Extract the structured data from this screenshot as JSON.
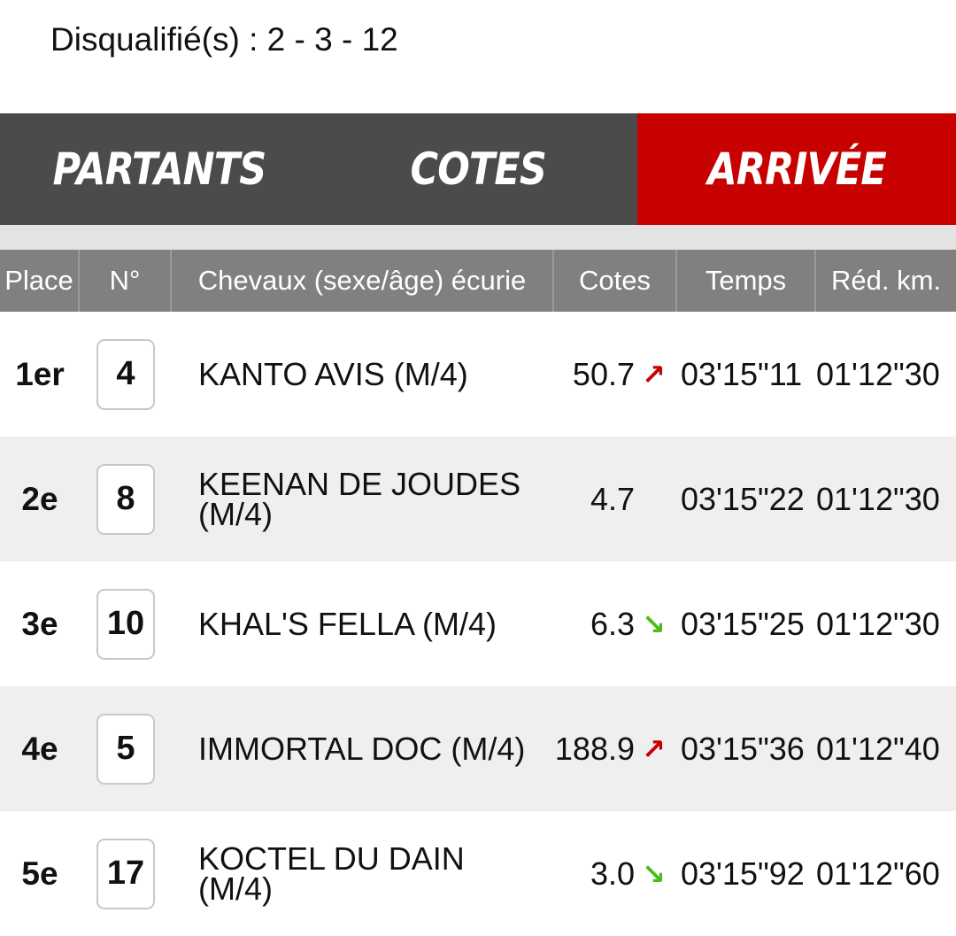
{
  "disqualified": "Disqualifié(s) : 2 - 3 - 12",
  "tabs": [
    {
      "label": "PARTANTS",
      "active": false
    },
    {
      "label": "COTES",
      "active": false
    },
    {
      "label": "ARRIVÉE",
      "active": true
    }
  ],
  "table": {
    "headers": {
      "place": "Place",
      "num": "N°",
      "horse": "Chevaux (sexe/âge) écurie",
      "cotes": "Cotes",
      "temps": "Temps",
      "red_km": "Réd. km."
    },
    "rows": [
      {
        "place": "1er",
        "num": "4",
        "horse": "KANTO AVIS (M/4)",
        "cote": "50.7",
        "trend": "up",
        "trend_icon": "arrow-up-right-icon",
        "temps": "03'15\"11",
        "red_km": "01'12\"30"
      },
      {
        "place": "2e",
        "num": "8",
        "horse": "KEENAN DE JOUDES (M/4)",
        "cote": "4.7",
        "trend": "none",
        "trend_icon": "",
        "temps": "03'15\"22",
        "red_km": "01'12\"30"
      },
      {
        "place": "3e",
        "num": "10",
        "horse": "KHAL'S FELLA (M/4)",
        "cote": "6.3",
        "trend": "down",
        "trend_icon": "arrow-down-right-icon",
        "temps": "03'15\"25",
        "red_km": "01'12\"30"
      },
      {
        "place": "4e",
        "num": "5",
        "horse": "IMMORTAL DOC (M/4)",
        "cote": "188.9",
        "trend": "up",
        "trend_icon": "arrow-up-right-icon",
        "temps": "03'15\"36",
        "red_km": "01'12\"40"
      },
      {
        "place": "5e",
        "num": "17",
        "horse": "KOCTEL DU DAIN (M/4)",
        "cote": "3.0",
        "trend": "down",
        "trend_icon": "arrow-down-right-icon",
        "temps": "03'15\"92",
        "red_km": "01'12\"60"
      }
    ]
  },
  "colors": {
    "active_tab": "#c70000",
    "tab_bar": "#4b4b4b",
    "header_bg": "#808080",
    "trend_up": "#c70000",
    "trend_down": "#4cbb17"
  }
}
